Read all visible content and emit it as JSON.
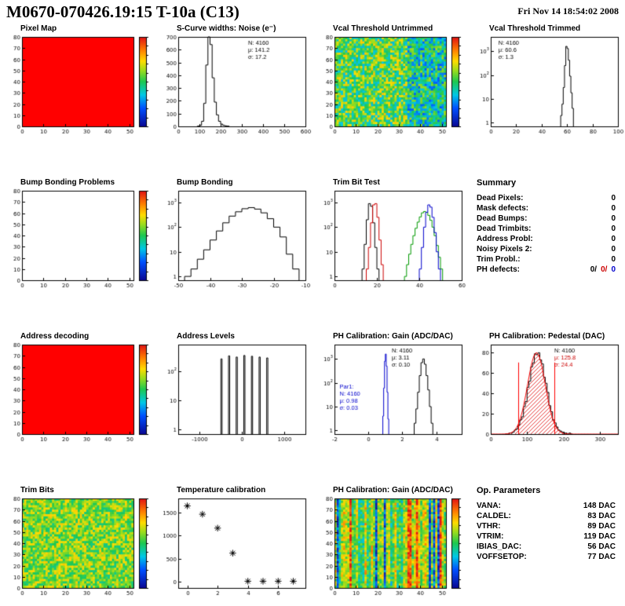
{
  "header": {
    "title": "M0670-070426.19:15 T-10a (C13)",
    "date": "Fri Nov 14 18:54:02 2008"
  },
  "summary": {
    "title": "Summary",
    "rows": [
      {
        "label": "Dead Pixels:",
        "value": "0"
      },
      {
        "label": "Mask defects:",
        "value": "0"
      },
      {
        "label": "Dead Bumps:",
        "value": "0"
      },
      {
        "label": "Dead Trimbits:",
        "value": "0"
      },
      {
        "label": "Address Probl:",
        "value": "0"
      },
      {
        "label": "Noisy Pixels 2:",
        "value": "0"
      },
      {
        "label": "Trim Probl.:",
        "value": "0"
      },
      {
        "label": "PH defects:",
        "values": [
          "0/",
          "0/",
          "0"
        ],
        "colors": [
          "#000000",
          "#cc0000",
          "#0000cc"
        ]
      }
    ]
  },
  "op_parameters": {
    "title": "Op. Parameters",
    "rows": [
      {
        "label": "VANA:",
        "value": "148 DAC"
      },
      {
        "label": "CALDEL:",
        "value": "83 DAC"
      },
      {
        "label": "VTHR:",
        "value": "89 DAC"
      },
      {
        "label": "VTRIM:",
        "value": "119 DAC"
      },
      {
        "label": "IBIAS_DAC:",
        "value": "56 DAC"
      },
      {
        "label": "VOFFSETOP:",
        "value": "77 DAC"
      }
    ]
  },
  "chart_data": [
    {
      "title": "Pixel Map",
      "type": "heatmap",
      "heatmap_mode": "uniform",
      "uniform_color": "#ff0000",
      "xlim": [
        0,
        52
      ],
      "xticks": [
        0,
        10,
        20,
        30,
        40,
        50
      ],
      "ylim": [
        0,
        80
      ],
      "yticks": [
        0,
        10,
        20,
        30,
        40,
        50,
        60,
        70,
        80
      ],
      "colorbar": true
    },
    {
      "title": "S-Curve widths: Noise (e⁻)",
      "type": "histogram",
      "xlim": [
        0,
        600
      ],
      "xticks": [
        0,
        100,
        200,
        300,
        400,
        500,
        600
      ],
      "ylim": [
        0,
        700
      ],
      "yticks": [
        0,
        100,
        200,
        300,
        400,
        500,
        600,
        700
      ],
      "series": [
        {
          "color": "#000000",
          "bin_start": 90,
          "bin_width": 10,
          "counts": [
            2,
            8,
            40,
            180,
            480,
            700,
            640,
            380,
            190,
            90,
            40,
            18,
            8,
            4,
            2
          ]
        }
      ],
      "stats": [
        {
          "x": 0.55,
          "y": 0.02,
          "lines": [
            {
              "text": "N: 4160",
              "color": "#000000"
            },
            {
              "text": "μ: 141.2",
              "color": "#000000"
            },
            {
              "text": "σ: 17.2",
              "color": "#000000"
            }
          ]
        }
      ]
    },
    {
      "title": "Vcal Threshold Untrimmed",
      "type": "heatmap",
      "heatmap_mode": "noise",
      "noise": {
        "seed": 11,
        "base": 0.55,
        "spread": 0.22,
        "right_base": 0.42,
        "right_frac": 0.35,
        "nx": 52,
        "ny": 40
      },
      "xlim": [
        0,
        52
      ],
      "xticks": [
        0,
        10,
        20,
        30,
        40,
        50
      ],
      "ylim": [
        0,
        80
      ],
      "yticks": [
        0,
        10,
        20,
        30,
        40,
        50,
        60,
        70,
        80
      ],
      "colorbar": true
    },
    {
      "title": "Vcal Threshold Trimmed",
      "type": "histogram",
      "ylog": true,
      "xlim": [
        0,
        100
      ],
      "xticks": [
        0,
        20,
        40,
        60,
        80,
        100
      ],
      "ylim": [
        0.7,
        4000
      ],
      "yticks": [
        {
          "v": 1,
          "l": "1"
        },
        {
          "v": 10,
          "l": "10"
        },
        {
          "v": 100,
          "l": "10",
          "sup": "2"
        },
        {
          "v": 1000,
          "l": "10",
          "sup": "3"
        }
      ],
      "series": [
        {
          "color": "#000000",
          "bin_start": 55,
          "bin_width": 1,
          "counts": [
            2,
            6,
            30,
            250,
            1600,
            1300,
            420,
            90,
            18,
            4
          ]
        }
      ],
      "stats": [
        {
          "x": 0.06,
          "y": 0.02,
          "lines": [
            {
              "text": "N: 4160",
              "color": "#000000"
            },
            {
              "text": "μ: 60.6",
              "color": "#000000"
            },
            {
              "text": "σ: 1.3",
              "color": "#000000"
            }
          ]
        }
      ]
    },
    {
      "title": "Bump Bonding Problems",
      "type": "heatmap",
      "heatmap_mode": "empty",
      "xlim": [
        0,
        52
      ],
      "xticks": [
        0,
        10,
        20,
        30,
        40,
        50
      ],
      "ylim": [
        0,
        80
      ],
      "yticks": [
        0,
        10,
        20,
        30,
        40,
        50,
        60,
        70,
        80
      ],
      "colorbar": true
    },
    {
      "title": "Bump Bonding",
      "type": "histogram",
      "ylog": true,
      "xlim": [
        -50,
        -10
      ],
      "xticks": [
        -50,
        -40,
        -30,
        -20,
        -10
      ],
      "ylim": [
        0.7,
        3000
      ],
      "yticks": [
        {
          "v": 1,
          "l": "1"
        },
        {
          "v": 10,
          "l": "10"
        },
        {
          "v": 100,
          "l": "10",
          "sup": "2"
        },
        {
          "v": 1000,
          "l": "10",
          "sup": "3"
        }
      ],
      "series": [
        {
          "color": "#000000",
          "bin_start": -48,
          "bin_width": 2,
          "counts": [
            1,
            2,
            5,
            12,
            30,
            70,
            150,
            280,
            420,
            560,
            620,
            540,
            380,
            220,
            100,
            40,
            8,
            2
          ]
        }
      ]
    },
    {
      "title": "Trim Bit Test",
      "type": "histogram",
      "ylog": true,
      "xlim": [
        0,
        60
      ],
      "xticks": [
        0,
        20,
        40,
        60
      ],
      "ylim": [
        0.7,
        3000
      ],
      "yticks": [
        {
          "v": 1,
          "l": "1"
        },
        {
          "v": 10,
          "l": "10"
        },
        {
          "v": 100,
          "l": "10",
          "sup": "2"
        },
        {
          "v": 1000,
          "l": "10",
          "sup": "3"
        }
      ],
      "series": [
        {
          "color": "#000000",
          "bin_start": 13,
          "bin_width": 1,
          "counts": [
            2,
            20,
            200,
            900,
            700,
            150,
            15,
            2
          ]
        },
        {
          "color": "#cc0000",
          "bin_start": 15,
          "bin_width": 1,
          "counts": [
            2,
            15,
            150,
            800,
            900,
            250,
            30,
            3
          ]
        },
        {
          "color": "#009900",
          "bin_start": 33,
          "bin_width": 1,
          "counts": [
            1,
            3,
            8,
            20,
            45,
            90,
            160,
            260,
            380,
            430,
            400,
            300,
            190,
            100,
            45,
            18,
            6,
            2
          ]
        },
        {
          "color": "#0000cc",
          "bin_start": 40,
          "bin_width": 1,
          "counts": [
            2,
            15,
            100,
            400,
            800,
            650,
            250,
            60,
            10,
            2
          ]
        }
      ]
    },
    {
      "title": "Address decoding",
      "type": "heatmap",
      "heatmap_mode": "uniform",
      "uniform_color": "#ff0000",
      "xlim": [
        0,
        52
      ],
      "xticks": [
        0,
        10,
        20,
        30,
        40,
        50
      ],
      "ylim": [
        0,
        80
      ],
      "yticks": [
        0,
        10,
        20,
        30,
        40,
        50,
        60,
        70,
        80
      ],
      "colorbar": true
    },
    {
      "title": "Address Levels",
      "type": "histogram",
      "ylog": true,
      "xlim": [
        -1500,
        1500
      ],
      "xticks": [
        -1000,
        0,
        1000
      ],
      "ylim": [
        0.7,
        800
      ],
      "yticks": [
        {
          "v": 1,
          "l": "1"
        },
        {
          "v": 10,
          "l": "10"
        },
        {
          "v": 100,
          "l": "10",
          "sup": "2"
        }
      ],
      "series": [
        {
          "color": "#000000",
          "spike_width": 28,
          "spikes": [
            [
              -480,
              260
            ],
            [
              -300,
              330
            ],
            [
              -120,
              300
            ],
            [
              60,
              340
            ],
            [
              240,
              320
            ],
            [
              420,
              300
            ],
            [
              600,
              280
            ]
          ]
        }
      ]
    },
    {
      "title": "PH Calibration: Gain (ADC/DAC)",
      "type": "histogram",
      "ylog": true,
      "xlim": [
        -2,
        5.5
      ],
      "xticks": [
        -2,
        0,
        2,
        4
      ],
      "ylim": [
        0.7,
        4000
      ],
      "yticks": [
        {
          "v": 1,
          "l": "1"
        },
        {
          "v": 10,
          "l": "10"
        },
        {
          "v": 100,
          "l": "10",
          "sup": "2"
        },
        {
          "v": 1000,
          "l": "10",
          "sup": "3"
        }
      ],
      "series": [
        {
          "color": "#0000cc",
          "bin_start": 0.85,
          "bin_width": 0.05,
          "counts": [
            4,
            60,
            800,
            1600,
            500,
            40,
            3
          ]
        },
        {
          "color": "#000000",
          "bin_start": 2.7,
          "bin_width": 0.1,
          "counts": [
            2,
            8,
            40,
            200,
            700,
            1000,
            600,
            200,
            50,
            10,
            2
          ]
        }
      ],
      "stats": [
        {
          "x": 0.45,
          "y": 0.02,
          "lines": [
            {
              "text": "N: 4160",
              "color": "#000000"
            },
            {
              "text": "μ: 3.11",
              "color": "#000000"
            },
            {
              "text": "σ: 0.10",
              "color": "#000000"
            }
          ]
        },
        {
          "x": 0.04,
          "y": 0.42,
          "lines": [
            {
              "text": "Par1:",
              "color": "#0000cc"
            },
            {
              "text": "N: 4160",
              "color": "#0000cc"
            },
            {
              "text": "μ: 0.98",
              "color": "#0000cc"
            },
            {
              "text": "σ: 0.03",
              "color": "#0000cc"
            }
          ]
        }
      ]
    },
    {
      "title": "PH Calibration: Pedestal (DAC)",
      "type": "histogram",
      "xlim": [
        0,
        350
      ],
      "xticks": [
        0,
        100,
        200,
        300
      ],
      "ylim": [
        0,
        88
      ],
      "yticks": [
        0,
        20,
        40,
        60,
        80
      ],
      "series": [
        {
          "color": "#000000",
          "fill": "hatch-red",
          "bin_start": 40,
          "bin_width": 5,
          "counts": [
            0,
            0,
            1,
            1,
            2,
            4,
            5,
            9,
            14,
            17,
            27,
            32,
            46,
            52,
            66,
            70,
            79,
            78,
            80,
            73,
            69,
            56,
            50,
            41,
            28,
            22,
            14,
            11,
            7,
            4,
            3,
            2,
            1,
            1,
            0,
            1,
            0
          ]
        }
      ],
      "fit": {
        "amp": 80,
        "mu": 125.8,
        "sigma": 24.4,
        "color": "#ff0000"
      },
      "vlines": [
        {
          "x": 76,
          "color": "#ff0000",
          "frac": 0.8
        },
        {
          "x": 176,
          "color": "#ff0000",
          "frac": 0.8
        }
      ],
      "stats": [
        {
          "x": 0.5,
          "y": 0.02,
          "lines": [
            {
              "text": "N: 4160",
              "color": "#000000"
            },
            {
              "text": "μ: 125.8",
              "color": "#cc0000"
            },
            {
              "text": "σ: 24.4",
              "color": "#cc0000"
            }
          ]
        }
      ]
    },
    {
      "title": "Trim Bits",
      "type": "heatmap",
      "heatmap_mode": "noise",
      "noise": {
        "seed": 23,
        "base": 0.6,
        "spread": 0.16,
        "nx": 52,
        "ny": 40
      },
      "xlim": [
        0,
        52
      ],
      "xticks": [
        0,
        10,
        20,
        30,
        40,
        50
      ],
      "ylim": [
        0,
        80
      ],
      "yticks": [
        0,
        10,
        20,
        30,
        40,
        50,
        60,
        70,
        80
      ],
      "colorbar": true
    },
    {
      "title": "Temperature calibration",
      "type": "scatter",
      "marker": "star",
      "xlim": [
        -0.6,
        7.8
      ],
      "xticks": [
        0,
        2,
        4,
        6
      ],
      "ylim": [
        -130,
        1800
      ],
      "yticks": [
        0,
        500,
        1000,
        1500
      ],
      "points": [
        [
          0,
          1640
        ],
        [
          1,
          1460
        ],
        [
          2,
          1160
        ],
        [
          3,
          620
        ],
        [
          4,
          15
        ],
        [
          5,
          15
        ],
        [
          6,
          15
        ],
        [
          7,
          15
        ]
      ]
    },
    {
      "title": "PH Calibration: Gain (ADC/DAC)",
      "type": "heatmap",
      "heatmap_mode": "stripes",
      "noise": {
        "seed": 5,
        "nx": 52,
        "ny": 40
      },
      "xlim": [
        0,
        52
      ],
      "xticks": [
        0,
        10,
        20,
        30,
        40,
        50
      ],
      "ylim": [
        0,
        80
      ],
      "yticks": [
        0,
        10,
        20,
        30,
        40,
        50,
        60,
        70,
        80
      ],
      "colorbar": true
    }
  ]
}
